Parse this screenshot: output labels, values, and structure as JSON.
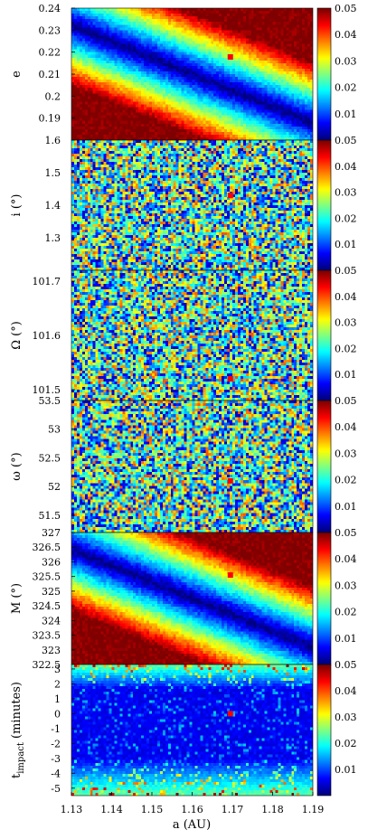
{
  "colormap": {
    "stops": [
      "#00007f",
      "#0000ff",
      "#0080ff",
      "#00ffff",
      "#80ff80",
      "#ffff00",
      "#ff8000",
      "#ff0000",
      "#7f0000"
    ]
  },
  "marker_color": "#ff0000",
  "xaxis": {
    "label": "a (AU)",
    "range": [
      1.13,
      1.19
    ],
    "ticks": [
      "1.13",
      "1.14",
      "1.15",
      "1.16",
      "1.17",
      "1.18",
      "1.19"
    ]
  },
  "chart_data": [
    {
      "type": "heatmap",
      "panel_id": "e",
      "ylabel": "e",
      "ylabel_sub": "",
      "ylim": [
        0.18,
        0.24
      ],
      "yticks": [
        "0.19",
        "0.2",
        "0.21",
        "0.22",
        "0.23",
        "0.24"
      ],
      "pattern": "smooth",
      "colorbar_range": [
        0,
        0.05
      ],
      "colorbar_ticks": [
        "0.01",
        "0.02",
        "0.03",
        "0.04",
        "0.05"
      ],
      "marker": {
        "x": 1.1695,
        "y": 0.2178
      }
    },
    {
      "type": "heatmap",
      "panel_id": "i",
      "ylabel": "i (°)",
      "ylabel_sub": "",
      "ylim": [
        1.2,
        1.6
      ],
      "yticks": [
        "1.3",
        "1.4",
        "1.5",
        "1.6"
      ],
      "pattern": "noise",
      "colorbar_range": [
        0,
        0.05
      ],
      "colorbar_ticks": [
        "0.01",
        "0.02",
        "0.03",
        "0.04",
        "0.05"
      ],
      "marker": {
        "x": 1.1695,
        "y": 1.43
      }
    },
    {
      "type": "heatmap",
      "panel_id": "Omega",
      "ylabel": "Ω (°)",
      "ylabel_sub": "",
      "ylim": [
        101.48,
        101.72
      ],
      "yticks": [
        "101.5",
        "101.6",
        "101.7"
      ],
      "pattern": "noise",
      "colorbar_range": [
        0,
        0.05
      ],
      "colorbar_ticks": [
        "0.01",
        "0.02",
        "0.03",
        "0.04",
        "0.05"
      ],
      "marker": {
        "x": 1.1695,
        "y": 101.52
      }
    },
    {
      "type": "heatmap",
      "panel_id": "omega",
      "ylabel": "ω (°)",
      "ylabel_sub": "",
      "ylim": [
        51.2,
        53.5
      ],
      "yticks": [
        "51.5",
        "52",
        "52.5",
        "53",
        "53.5"
      ],
      "pattern": "noise",
      "colorbar_range": [
        0,
        0.05
      ],
      "colorbar_ticks": [
        "0.01",
        "0.02",
        "0.03",
        "0.04",
        "0.05"
      ],
      "marker": {
        "x": 1.1695,
        "y": 52.1
      }
    },
    {
      "type": "heatmap",
      "panel_id": "M",
      "ylabel": "M (°)",
      "ylabel_sub": "",
      "ylim": [
        322.5,
        327
      ],
      "yticks": [
        "322.5",
        "323",
        "323.5",
        "324",
        "324.5",
        "325",
        "325.5",
        "326",
        "326.5",
        "327"
      ],
      "pattern": "smooth",
      "colorbar_range": [
        0,
        0.05
      ],
      "colorbar_ticks": [
        "0.01",
        "0.02",
        "0.03",
        "0.04",
        "0.05"
      ],
      "marker": {
        "x": 1.1695,
        "y": 325.55
      }
    },
    {
      "type": "heatmap",
      "panel_id": "t",
      "ylabel": "t",
      "ylabel_sub": "impact",
      "ylabel_suffix": " (minutes)",
      "ylim": [
        -5.5,
        3.3
      ],
      "yticks": [
        "-5",
        "-4",
        "-3",
        "-2",
        "-1",
        "0",
        "1",
        "2",
        "3"
      ],
      "pattern": "band",
      "colorbar_range": [
        0,
        0.05
      ],
      "colorbar_ticks": [
        "0.01",
        "0.02",
        "0.03",
        "0.04",
        "0.05"
      ],
      "marker": {
        "x": 1.1695,
        "y": 0.0
      }
    }
  ]
}
